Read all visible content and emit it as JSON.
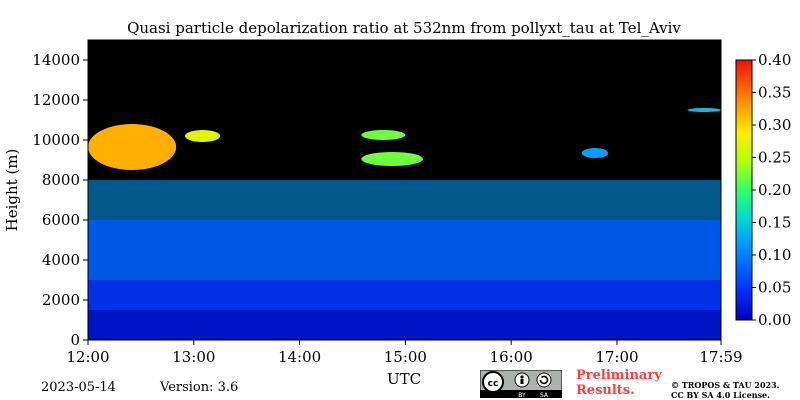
{
  "chart_data": {
    "type": "heatmap",
    "title": "Quasi particle depolarization ratio at 532nm from pollyxt_tau at Tel_Aviv",
    "xlabel": "UTC",
    "ylabel": "Height (m)",
    "x_ticks": [
      "12:00",
      "13:00",
      "14:00",
      "15:00",
      "16:00",
      "17:00",
      "17:59"
    ],
    "y_ticks": [
      "0",
      "2000",
      "4000",
      "6000",
      "8000",
      "10000",
      "12000",
      "14000"
    ],
    "xlim": [
      "12:00",
      "17:59"
    ],
    "ylim": [
      0,
      15000
    ],
    "colorbar": {
      "range": [
        0.0,
        0.4
      ],
      "ticks": [
        "0.00",
        "0.05",
        "0.10",
        "0.15",
        "0.20",
        "0.25",
        "0.30",
        "0.35",
        "0.40"
      ],
      "colormap": "jet"
    },
    "background_color": "#000000",
    "layers": [
      {
        "height_range_m": [
          0,
          1500
        ],
        "value": 0.02
      },
      {
        "height_range_m": [
          1500,
          3000
        ],
        "value": 0.05
      },
      {
        "height_range_m": [
          3000,
          6000
        ],
        "value": 0.08
      },
      {
        "height_range_m": [
          6000,
          8000
        ],
        "value": 0.12
      }
    ],
    "features": [
      {
        "time_range": [
          "12:00",
          "12:50"
        ],
        "height_range_m": [
          8500,
          10800
        ],
        "value": 0.32
      },
      {
        "time_range": [
          "12:55",
          "13:15"
        ],
        "height_range_m": [
          9900,
          10500
        ],
        "value": 0.27
      },
      {
        "time_range": [
          "14:35",
          "15:10"
        ],
        "height_range_m": [
          8700,
          9400
        ],
        "value": 0.22
      },
      {
        "time_range": [
          "14:35",
          "15:00"
        ],
        "height_range_m": [
          10000,
          10500
        ],
        "value": 0.22
      },
      {
        "time_range": [
          "16:40",
          "16:55"
        ],
        "height_range_m": [
          9100,
          9600
        ],
        "value": 0.12
      },
      {
        "time_range": [
          "17:40",
          "17:59"
        ],
        "height_range_m": [
          11400,
          11600
        ],
        "value": 0.14
      }
    ]
  },
  "footer": {
    "date": "2023-05-14",
    "version": "Version: 3.6",
    "prelim_line1": "Preliminary",
    "prelim_line2": "Results.",
    "copyright_line1": "© TROPOS & TAU 2023.",
    "copyright_line2": "CC BY SA 4.0 License.",
    "license_badge": {
      "main": "cc",
      "left": "BY",
      "right": "SA"
    }
  }
}
